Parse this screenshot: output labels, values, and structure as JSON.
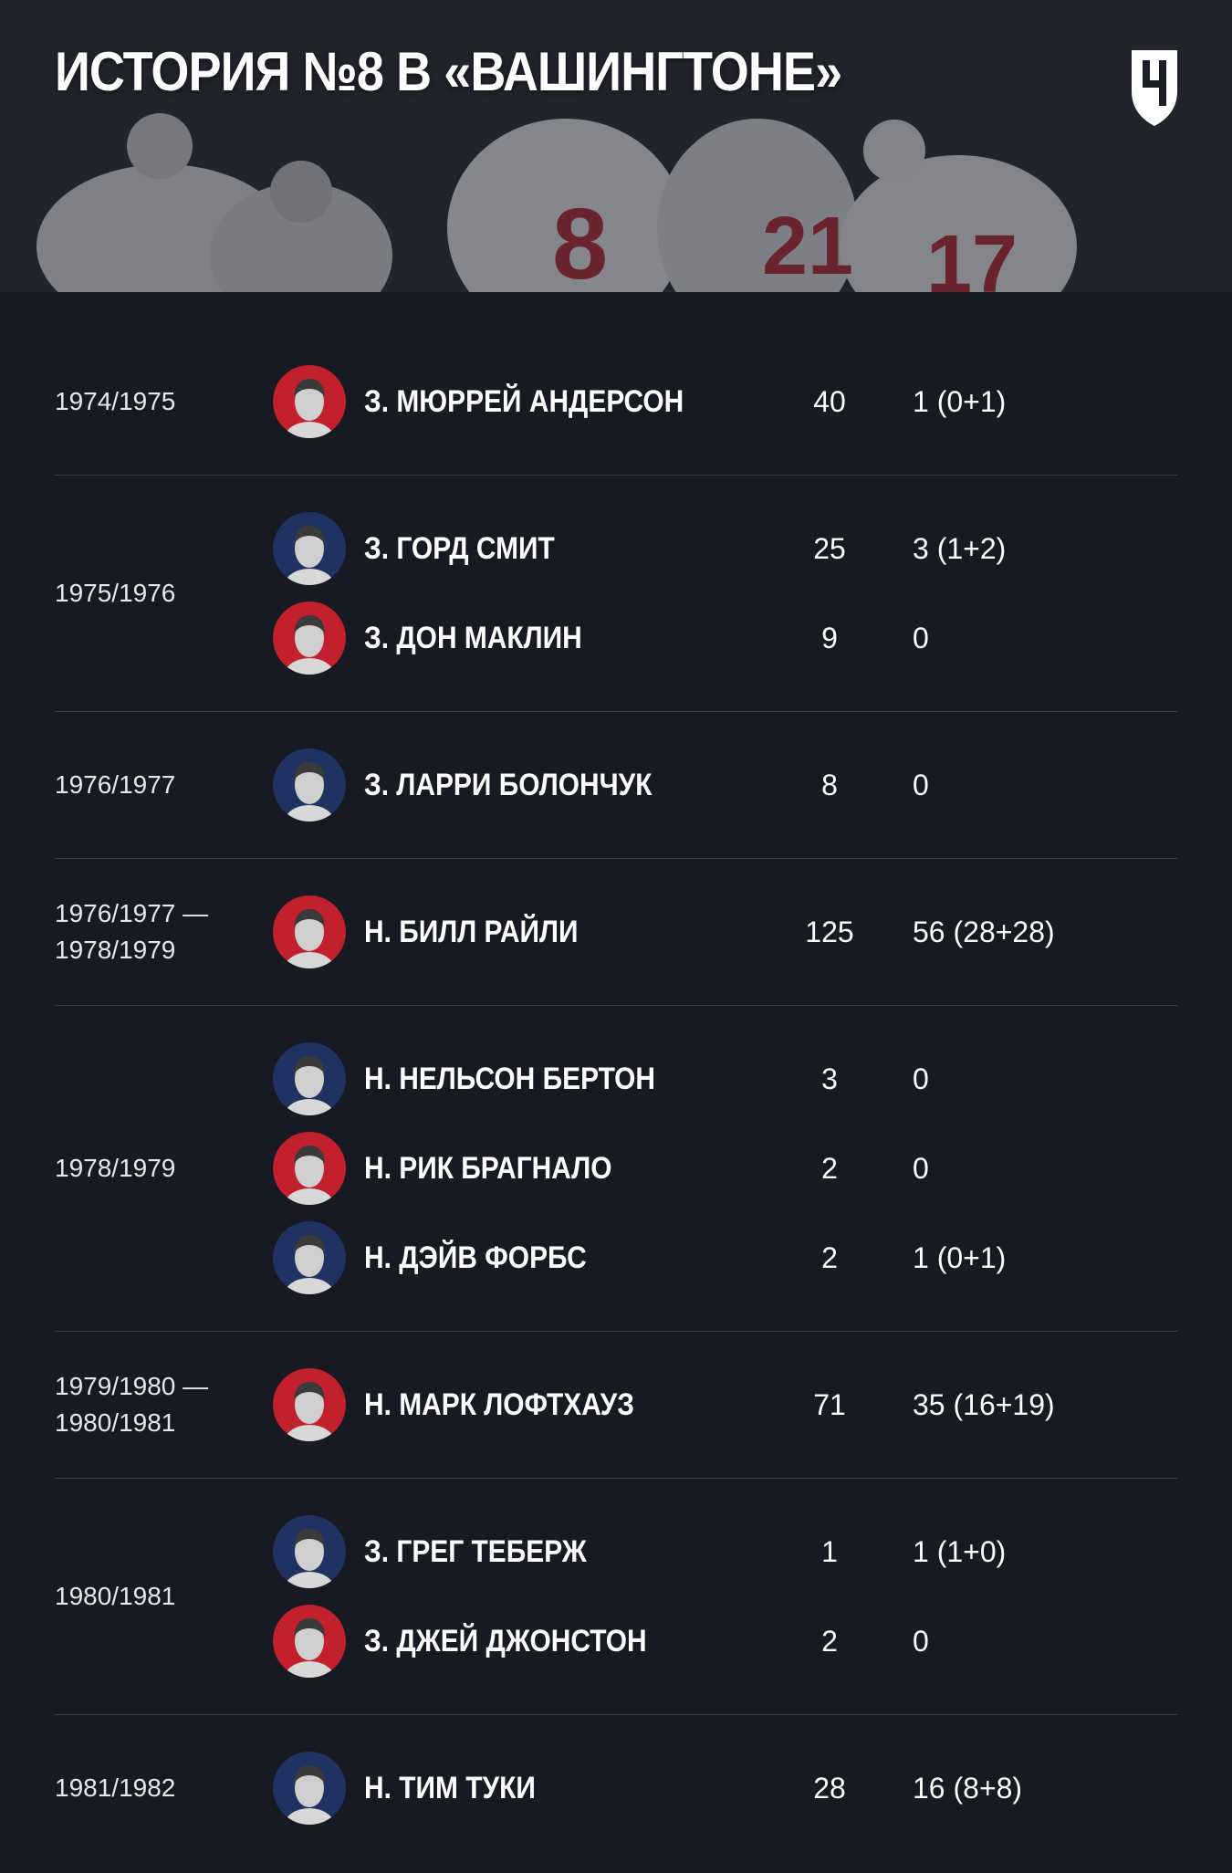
{
  "header": {
    "title": "ИСТОРИЯ №8 В «ВАШИНГТОНЕ»"
  },
  "groups": [
    {
      "season": [
        "1974/1975"
      ],
      "players": [
        {
          "name": "З. МЮРРЕЙ АНДЕРСОН",
          "games": 40,
          "points": "1 (0+1)"
        }
      ]
    },
    {
      "season": [
        "1975/1976"
      ],
      "players": [
        {
          "name": "З. ГОРД СМИТ",
          "games": 25,
          "points": "3 (1+2)"
        },
        {
          "name": "З. ДОН МАКЛИН",
          "games": 9,
          "points": "0"
        }
      ]
    },
    {
      "season": [
        "1976/1977"
      ],
      "players": [
        {
          "name": "З. ЛАРРИ БОЛОНЧУК",
          "games": 8,
          "points": "0"
        }
      ]
    },
    {
      "season": [
        "1976/1977 —",
        "1978/1979"
      ],
      "players": [
        {
          "name": "Н. БИЛЛ РАЙЛИ",
          "games": 125,
          "points": "56 (28+28)"
        }
      ]
    },
    {
      "season": [
        "1978/1979"
      ],
      "players": [
        {
          "name": "Н. НЕЛЬСОН БЕРТОН",
          "games": 3,
          "points": "0"
        },
        {
          "name": "Н. РИК БРАГНАЛО",
          "games": 2,
          "points": "0"
        },
        {
          "name": "Н. ДЭЙВ ФОРБС",
          "games": 2,
          "points": "1 (0+1)"
        }
      ]
    },
    {
      "season": [
        "1979/1980 —",
        "1980/1981"
      ],
      "players": [
        {
          "name": "Н. МАРК ЛОФТХАУЗ",
          "games": 71,
          "points": "35 (16+19)"
        }
      ]
    },
    {
      "season": [
        "1980/1981"
      ],
      "players": [
        {
          "name": "З. ГРЕГ ТЕБЕРЖ",
          "games": 1,
          "points": "1 (1+0)"
        },
        {
          "name": "З. ДЖЕЙ ДЖОНСТОН",
          "games": 2,
          "points": "0"
        }
      ]
    },
    {
      "season": [
        "1981/1982"
      ],
      "players": [
        {
          "name": "Н. ТИМ ТУКИ",
          "games": 28,
          "points": "16 (8+8)"
        }
      ]
    }
  ]
}
